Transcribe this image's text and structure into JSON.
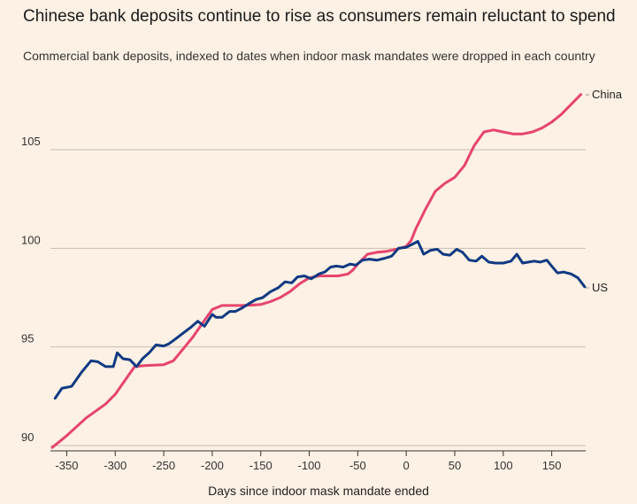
{
  "chart_data": {
    "type": "line",
    "title": "Chinese bank deposits continue to rise as consumers remain reluctant to spend",
    "subtitle": "Commercial bank deposits, indexed to dates when indoor mask mandates were dropped in each country",
    "xlabel": "Days since indoor mask mandate ended",
    "ylabel": "",
    "xlim": [
      -365,
      185
    ],
    "ylim": [
      90,
      108
    ],
    "xticks": [
      -350,
      -300,
      -250,
      -200,
      -150,
      -100,
      -50,
      0,
      50,
      100,
      150
    ],
    "yticks": [
      90,
      95,
      100,
      105
    ],
    "grid": "horizontal",
    "legend": "direct labels at line ends",
    "colors": {
      "China": "#e6446e",
      "US": "#0f3a82"
    },
    "series": [
      {
        "name": "China",
        "x": [
          -365,
          -350,
          -330,
          -310,
          -300,
          -290,
          -280,
          -270,
          -250,
          -240,
          -230,
          -220,
          -210,
          -200,
          -190,
          -180,
          -170,
          -160,
          -150,
          -140,
          -130,
          -120,
          -110,
          -100,
          -90,
          -80,
          -70,
          -60,
          -55,
          -50,
          -40,
          -30,
          -20,
          -10,
          0,
          5,
          10,
          20,
          30,
          40,
          50,
          60,
          70,
          80,
          90,
          100,
          110,
          120,
          130,
          140,
          150,
          160,
          170,
          180
        ],
        "y": [
          89.9,
          90.5,
          91.4,
          92.1,
          92.6,
          93.3,
          94.0,
          94.05,
          94.1,
          94.3,
          94.9,
          95.5,
          96.2,
          96.9,
          97.1,
          97.1,
          97.1,
          97.12,
          97.15,
          97.3,
          97.5,
          97.8,
          98.2,
          98.5,
          98.6,
          98.6,
          98.6,
          98.7,
          98.9,
          99.2,
          99.7,
          99.8,
          99.85,
          99.95,
          100.1,
          100.4,
          101.0,
          102.0,
          102.9,
          103.3,
          103.6,
          104.2,
          105.2,
          105.9,
          106.0,
          105.9,
          105.8,
          105.8,
          105.9,
          106.1,
          106.4,
          106.8,
          107.3,
          107.8
        ]
      },
      {
        "name": "US",
        "x": [
          -362,
          -355,
          -345,
          -335,
          -325,
          -318,
          -310,
          -302,
          -298,
          -292,
          -285,
          -278,
          -272,
          -265,
          -258,
          -250,
          -245,
          -238,
          -230,
          -222,
          -215,
          -208,
          -200,
          -196,
          -190,
          -182,
          -176,
          -170,
          -162,
          -155,
          -148,
          -140,
          -132,
          -125,
          -118,
          -112,
          -105,
          -98,
          -90,
          -84,
          -78,
          -72,
          -65,
          -58,
          -52,
          -45,
          -38,
          -30,
          -22,
          -15,
          -8,
          0,
          6,
          12,
          18,
          25,
          32,
          38,
          45,
          52,
          58,
          65,
          72,
          78,
          85,
          92,
          100,
          108,
          114,
          120,
          126,
          132,
          138,
          145,
          150,
          156,
          162,
          170,
          177,
          184
        ],
        "y": [
          92.4,
          92.9,
          93.0,
          93.7,
          94.3,
          94.25,
          94.0,
          94.0,
          94.7,
          94.4,
          94.35,
          94.0,
          94.4,
          94.7,
          95.1,
          95.05,
          95.15,
          95.4,
          95.7,
          96.0,
          96.3,
          96.05,
          96.65,
          96.5,
          96.5,
          96.8,
          96.8,
          96.95,
          97.2,
          97.4,
          97.5,
          97.8,
          98.0,
          98.3,
          98.25,
          98.55,
          98.6,
          98.45,
          98.7,
          98.8,
          99.05,
          99.1,
          99.05,
          99.2,
          99.15,
          99.4,
          99.45,
          99.4,
          99.5,
          99.6,
          100.0,
          100.05,
          100.2,
          100.35,
          99.7,
          99.9,
          99.95,
          99.7,
          99.65,
          99.95,
          99.8,
          99.4,
          99.35,
          99.6,
          99.3,
          99.25,
          99.25,
          99.35,
          99.7,
          99.25,
          99.3,
          99.35,
          99.3,
          99.4,
          99.1,
          98.75,
          98.8,
          98.7,
          98.5,
          98.05
        ]
      }
    ]
  }
}
